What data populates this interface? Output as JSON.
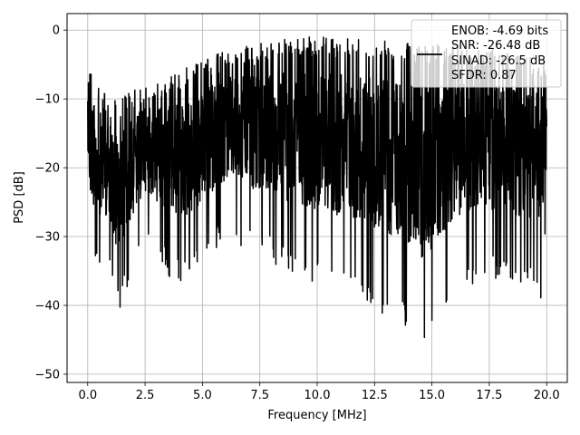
{
  "chart_data": {
    "type": "line",
    "xlabel": "Frequency [MHz]",
    "ylabel": "PSD [dB]",
    "xlim": [
      -0.9,
      20.9
    ],
    "ylim": [
      -51.2,
      2.4
    ],
    "xticks": [
      0.0,
      2.5,
      5.0,
      7.5,
      10.0,
      12.5,
      15.0,
      17.5,
      20.0
    ],
    "xtick_labels": [
      "0.0",
      "2.5",
      "5.0",
      "7.5",
      "10.0",
      "12.5",
      "15.0",
      "17.5",
      "20.0"
    ],
    "yticks": [
      0,
      -10,
      -20,
      -30,
      -40,
      -50
    ],
    "ytick_labels": [
      "0",
      "−10",
      "−20",
      "−30",
      "−40",
      "−50"
    ],
    "grid": true,
    "legend": {
      "placement": "top-right",
      "entries": [
        "ENOB: -4.69 bits",
        "SNR: -26.48 dB",
        "SINAD: -26.5 dB",
        "SFDR: 0.87"
      ]
    },
    "series": [
      {
        "color": "#000000",
        "x_range": [
          0.0,
          20.0
        ],
        "envelope_points": [
          {
            "x": 0.0,
            "y_max": -5,
            "y_min": -22
          },
          {
            "x": 0.1,
            "y_max": -5,
            "y_min": -34
          },
          {
            "x": 0.3,
            "y_max": -7,
            "y_min": -35
          },
          {
            "x": 1.0,
            "y_max": -10,
            "y_min": -35
          },
          {
            "x": 1.2,
            "y_max": -10,
            "y_min": -43
          },
          {
            "x": 2.5,
            "y_max": -8,
            "y_min": -30
          },
          {
            "x": 3.5,
            "y_max": -7,
            "y_min": -36
          },
          {
            "x": 4.5,
            "y_max": -5,
            "y_min": -37
          },
          {
            "x": 6.0,
            "y_max": -3,
            "y_min": -30
          },
          {
            "x": 7.5,
            "y_max": -2,
            "y_min": -33
          },
          {
            "x": 8.5,
            "y_max": -1,
            "y_min": -35
          },
          {
            "x": 10.0,
            "y_max": -1,
            "y_min": -37
          },
          {
            "x": 12.0,
            "y_max": -1,
            "y_min": -40
          },
          {
            "x": 14.2,
            "y_max": -2,
            "y_min": -44
          },
          {
            "x": 14.4,
            "y_max": -2,
            "y_min": -49
          },
          {
            "x": 16.0,
            "y_max": -2,
            "y_min": -38
          },
          {
            "x": 18.0,
            "y_max": -3,
            "y_min": -36
          },
          {
            "x": 19.8,
            "y_max": -4,
            "y_min": -39
          },
          {
            "x": 20.0,
            "y_max": -5,
            "y_min": -28
          }
        ]
      }
    ]
  }
}
